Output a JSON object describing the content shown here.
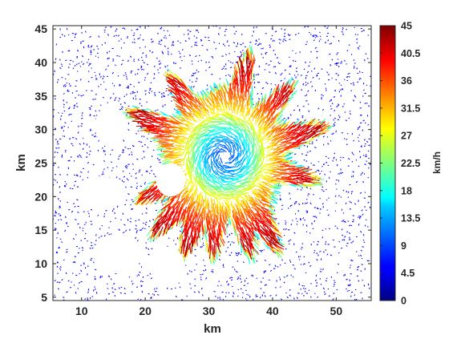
{
  "chart_data": {
    "type": "quiver",
    "title": "",
    "xlabel": "km",
    "ylabel": "km",
    "xlim": [
      5.5,
      55.5
    ],
    "ylim": [
      4.5,
      45.5
    ],
    "xticks": [
      10,
      20,
      30,
      40,
      50
    ],
    "yticks": [
      5,
      10,
      15,
      20,
      25,
      30,
      35,
      40,
      45
    ],
    "grid": false,
    "colorbar": {
      "label": "km/h",
      "colormap": "jet",
      "range": [
        0,
        45
      ],
      "ticks": [
        "0",
        "4.5",
        "9",
        "13.5",
        "18",
        "22.5",
        "27",
        "31.5",
        "36",
        "40.5",
        "45"
      ]
    },
    "storm_center_km": [
      32.5,
      26
    ],
    "core_calm_radius_km": 2,
    "ring_peak_radius_km": 4.5,
    "outer_extent_km": 16,
    "speed_profile_kmh": [
      {
        "r_km": 0,
        "speed": 8
      },
      {
        "r_km": 3,
        "speed": 14
      },
      {
        "r_km": 6,
        "speed": 27
      },
      {
        "r_km": 9,
        "speed": 36
      },
      {
        "r_km": 12,
        "speed": 41
      },
      {
        "r_km": 16,
        "speed": 43
      }
    ],
    "spiral_arms_direction_deg": [
      125,
      155,
      205,
      225,
      245,
      262,
      285,
      300,
      345,
      15,
      45,
      75
    ],
    "background_speed_kmh": 1,
    "no_data_regions_center_km": [
      [
        14.5,
        30.5
      ],
      [
        13,
        20.5
      ],
      [
        15.5,
        11.5
      ],
      [
        23.5,
        9.5
      ],
      [
        24,
        22.5
      ]
    ]
  }
}
